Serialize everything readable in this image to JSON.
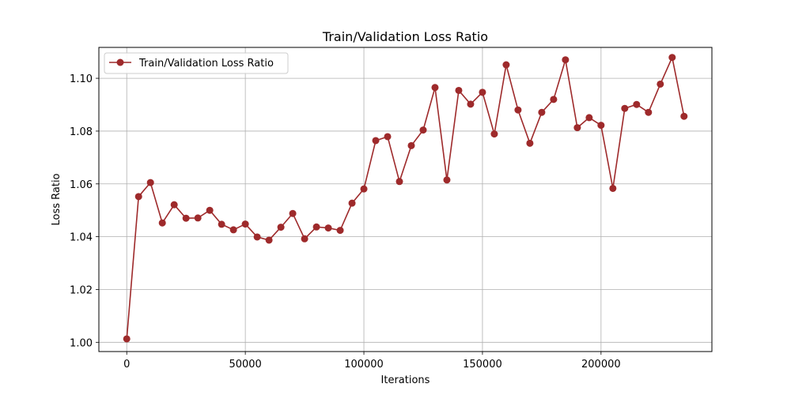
{
  "chart_data": {
    "type": "line",
    "title": "Train/Validation Loss Ratio",
    "xlabel": "Iterations",
    "ylabel": "Loss Ratio",
    "xlim": [
      -11750,
      246750
    ],
    "ylim": [
      0.9965,
      1.1117
    ],
    "xticks": [
      0,
      50000,
      100000,
      150000,
      200000
    ],
    "xtick_labels": [
      "0",
      "50000",
      "100000",
      "150000",
      "200000"
    ],
    "yticks": [
      1.0,
      1.02,
      1.04,
      1.06,
      1.08,
      1.1
    ],
    "ytick_labels": [
      "1.00",
      "1.02",
      "1.04",
      "1.06",
      "1.08",
      "1.10"
    ],
    "grid": true,
    "legend_position": "top-left",
    "series": [
      {
        "name": "Train/Validation Loss Ratio",
        "color": "#9e2a2b",
        "marker": "circle",
        "x": [
          0,
          5000,
          10000,
          15000,
          20000,
          25000,
          30000,
          35000,
          40000,
          45000,
          50000,
          55000,
          60000,
          65000,
          70000,
          75000,
          80000,
          85000,
          90000,
          95000,
          100000,
          105000,
          110000,
          115000,
          120000,
          125000,
          130000,
          135000,
          140000,
          145000,
          150000,
          155000,
          160000,
          165000,
          170000,
          175000,
          180000,
          185000,
          190000,
          195000,
          200000,
          205000,
          210000,
          215000,
          220000,
          225000,
          230000,
          235000
        ],
        "y": [
          1.0013,
          1.0552,
          1.0605,
          1.0452,
          1.0521,
          1.047,
          1.0471,
          1.05,
          1.0447,
          1.0426,
          1.0448,
          1.0399,
          1.0387,
          1.0436,
          1.0488,
          1.0392,
          1.0437,
          1.0433,
          1.0424,
          1.0527,
          1.0581,
          1.0764,
          1.0779,
          1.0609,
          1.0745,
          1.0804,
          1.0965,
          1.0615,
          1.0954,
          1.0902,
          1.0947,
          1.0789,
          1.1051,
          1.088,
          1.0754,
          1.0871,
          1.092,
          1.107,
          1.0813,
          1.0851,
          1.0822,
          1.0583,
          1.0886,
          1.0901,
          1.0871,
          1.0978,
          1.1079,
          1.0856
        ]
      }
    ]
  }
}
